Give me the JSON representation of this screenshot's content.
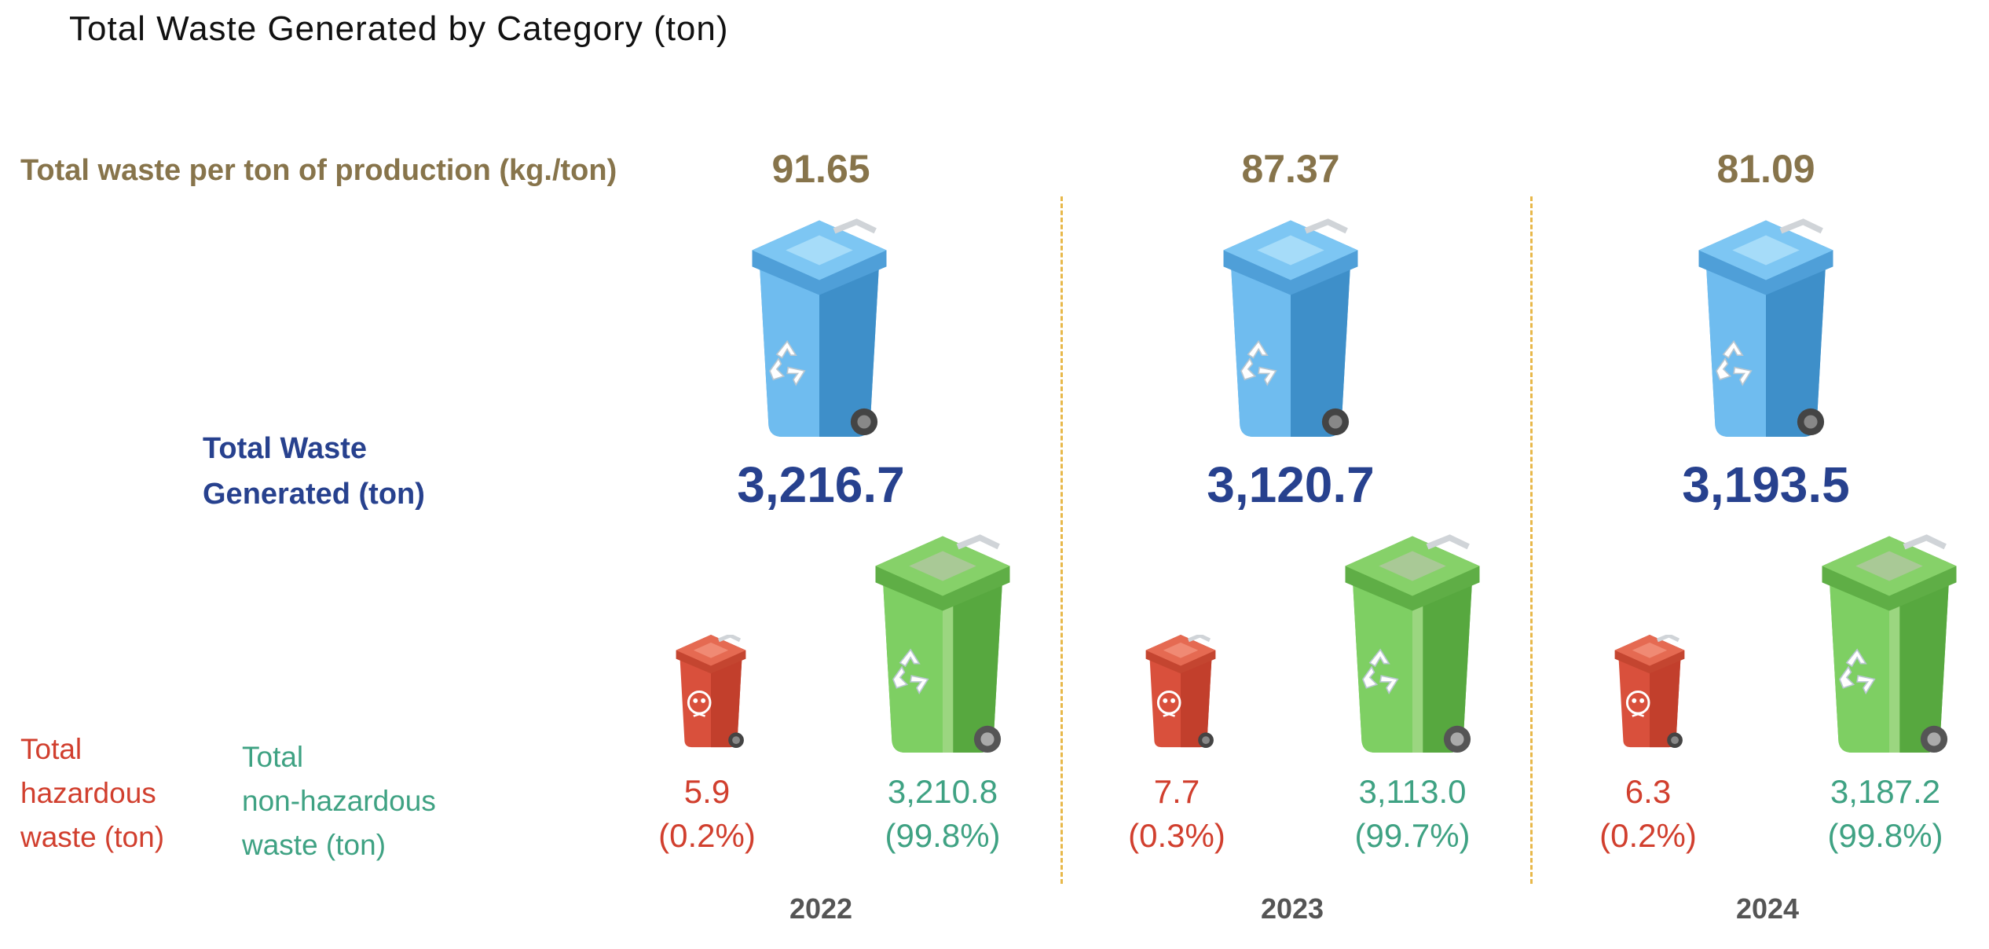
{
  "title": "Total Waste Generated by Category (ton)",
  "labels": {
    "per_ton": "Total waste per ton of production (kg./ton)",
    "total_line1": "Total Waste",
    "total_line2": "Generated (ton)",
    "haz_line1": "Total",
    "haz_line2": "hazardous",
    "haz_line3": "waste (ton)",
    "nonhaz_line1": "Total",
    "nonhaz_line2": "non-hazardous",
    "nonhaz_line3": "waste (ton)"
  },
  "colors": {
    "per_ton": "#87744b",
    "total": "#27418e",
    "hazardous": "#d13f2e",
    "non_hazardous": "#3fa283",
    "divider": "#e8b84a",
    "blue_bin": "#5aace3",
    "red_bin": "#d9503c",
    "green_bin": "#6cc152"
  },
  "icons": [
    "blue-recycle-bin-icon",
    "red-hazardous-bin-icon",
    "green-recycle-bin-icon"
  ],
  "chart_data": {
    "type": "table",
    "title": "Total Waste Generated by Category (ton)",
    "categories": [
      "2022",
      "2023",
      "2024"
    ],
    "series": [
      {
        "name": "Total waste per ton of production (kg./ton)",
        "values": [
          91.65,
          87.37,
          81.09
        ]
      },
      {
        "name": "Total Waste Generated (ton)",
        "values": [
          3216.7,
          3120.7,
          3193.5
        ]
      },
      {
        "name": "Total hazardous waste (ton)",
        "values": [
          5.9,
          7.7,
          6.3
        ],
        "percent": [
          0.2,
          0.3,
          0.2
        ]
      },
      {
        "name": "Total non-hazardous waste (ton)",
        "values": [
          3210.8,
          3113.0,
          3187.2
        ],
        "percent": [
          99.8,
          99.7,
          99.8
        ]
      }
    ]
  },
  "years": [
    {
      "year": "2022",
      "per_ton": "91.65",
      "total": "3,216.7",
      "haz": "5.9",
      "haz_pct": "(0.2%)",
      "nonhaz": "3,210.8",
      "nonhaz_pct": "(99.8%)"
    },
    {
      "year": "2023",
      "per_ton": "87.37",
      "total": "3,120.7",
      "haz": "7.7",
      "haz_pct": "(0.3%)",
      "nonhaz": "3,113.0",
      "nonhaz_pct": "(99.7%)"
    },
    {
      "year": "2024",
      "per_ton": "81.09",
      "total": "3,193.5",
      "haz": "6.3",
      "haz_pct": "(0.2%)",
      "nonhaz": "3,187.2",
      "nonhaz_pct": "(99.8%)"
    }
  ]
}
